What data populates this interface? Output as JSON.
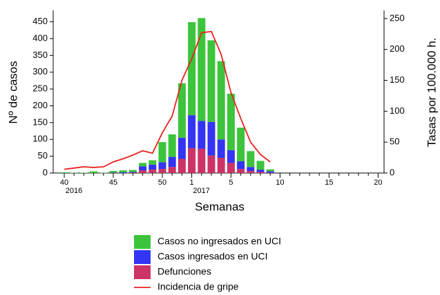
{
  "chart_data": {
    "type": "bar",
    "x_label": "Semanas",
    "y_label": "Nº de casos",
    "y2_label": "Tasas por 100.000 h.",
    "year_labels": [
      "2016",
      "2017"
    ],
    "categories": [
      "40",
      null,
      null,
      null,
      null,
      "45",
      null,
      null,
      null,
      null,
      "50",
      null,
      null,
      "1",
      null,
      null,
      null,
      "5",
      null,
      null,
      null,
      null,
      "10",
      null,
      null,
      null,
      null,
      "15",
      null,
      null,
      null,
      null,
      "20"
    ],
    "ylim": [
      0,
      480
    ],
    "yticks": [
      0,
      50,
      100,
      150,
      200,
      250,
      300,
      350,
      400,
      450
    ],
    "y2lim": [
      0,
      261
    ],
    "y2ticks": [
      0,
      50,
      100,
      150,
      200,
      250
    ],
    "series": [
      {
        "name": "Casos no ingresados en UCI",
        "color": "#3cc43c",
        "type": "bar",
        "values": [
          2,
          1,
          1,
          5,
          1,
          5,
          6,
          6,
          10,
          13,
          60,
          67,
          162,
          277,
          306,
          243,
          233,
          168,
          100,
          47,
          26,
          6,
          null,
          null,
          null,
          null,
          null,
          null,
          null,
          null,
          null,
          null,
          null
        ]
      },
      {
        "name": "Casos ingresados en UCI",
        "color": "#3434f5",
        "type": "bar",
        "values": [
          0,
          0,
          0,
          0,
          0,
          1,
          2,
          2,
          12,
          15,
          20,
          30,
          63,
          98,
          83,
          100,
          55,
          38,
          23,
          12,
          7,
          4,
          null,
          null,
          null,
          null,
          null,
          null,
          null,
          null,
          null,
          null,
          null
        ]
      },
      {
        "name": "Defunciones",
        "color": "#cc3366",
        "type": "bar",
        "values": [
          0,
          0,
          0,
          0,
          0,
          0,
          0,
          1,
          8,
          10,
          12,
          18,
          42,
          74,
          72,
          52,
          45,
          30,
          12,
          6,
          3,
          1,
          null,
          null,
          null,
          null,
          null,
          null,
          null,
          null,
          null,
          null,
          null
        ]
      },
      {
        "name": "Incidencia de gripe",
        "color": "#e8201e",
        "type": "line",
        "axis": "y2",
        "values": [
          6,
          8,
          10,
          9,
          10,
          18,
          23,
          29,
          36,
          32,
          65,
          92,
          150,
          185,
          227,
          229,
          192,
          130,
          88,
          50,
          30,
          18,
          null,
          null,
          null,
          null,
          null,
          null,
          null,
          null,
          null,
          null,
          null
        ]
      }
    ]
  }
}
